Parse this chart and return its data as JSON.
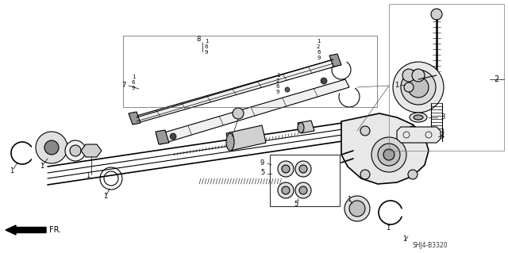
{
  "bg_color": "#ffffff",
  "line_color": "#000000",
  "fig_width": 6.4,
  "fig_height": 3.19,
  "dpi": 100,
  "diagram_id": "SHJ4-B3320"
}
